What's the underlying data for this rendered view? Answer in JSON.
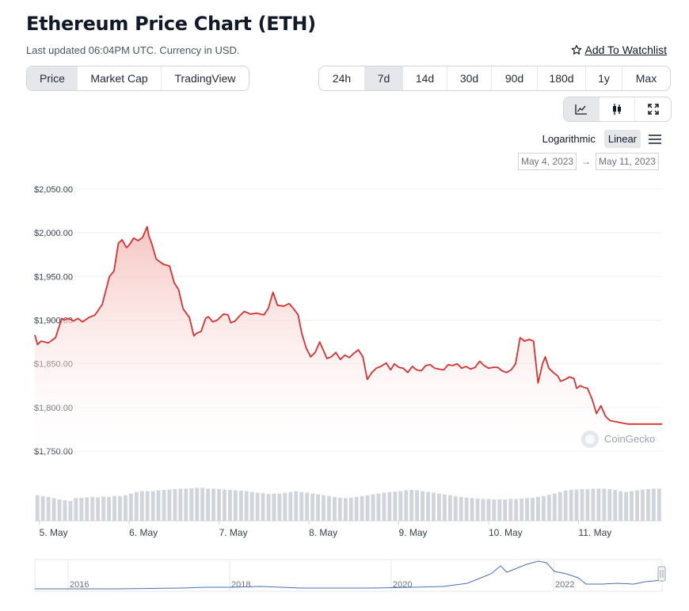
{
  "header": {
    "title": "Ethereum Price Chart (ETH)",
    "subtitle": "Last updated 06:04PM UTC. Currency in USD.",
    "watchlist_label": "Add To Watchlist"
  },
  "chart_tabs": [
    {
      "label": "Price",
      "active": true
    },
    {
      "label": "Market Cap",
      "active": false
    },
    {
      "label": "TradingView",
      "active": false
    }
  ],
  "range_tabs": [
    {
      "label": "24h",
      "active": false
    },
    {
      "label": "7d",
      "active": true
    },
    {
      "label": "14d",
      "active": false
    },
    {
      "label": "30d",
      "active": false
    },
    {
      "label": "90d",
      "active": false
    },
    {
      "label": "180d",
      "active": false
    },
    {
      "label": "1y",
      "active": false
    },
    {
      "label": "Max",
      "active": false
    }
  ],
  "view_icons": [
    "line-chart-icon",
    "candlestick-icon",
    "fullscreen-icon"
  ],
  "scale": {
    "logarithmic": "Logarithmic",
    "linear": "Linear",
    "active": "linear"
  },
  "date_range": {
    "from": "May 4, 2023",
    "arrow": "→",
    "to": "May 11, 2023"
  },
  "watermark": "CoinGecko",
  "colors": {
    "line": "#d93030",
    "fill_top": "#f7c9c6",
    "volume": "#d1d5db",
    "navigator": "#4a6fb5",
    "active_bg": "#e5e7eb"
  },
  "chart_data": {
    "type": "area",
    "title": "Ethereum Price Chart (ETH)",
    "y_ticks": [
      {
        "value": 2050,
        "label": "$2,050.00"
      },
      {
        "value": 2000,
        "label": "$2,000.00"
      },
      {
        "value": 1950,
        "label": "$1,950.00"
      },
      {
        "value": 1900,
        "label": "$1,900.00"
      },
      {
        "value": 1850,
        "label": "$1,850.00"
      },
      {
        "value": 1800,
        "label": "$1,800.00"
      },
      {
        "value": 1750,
        "label": "$1,750.00"
      }
    ],
    "ylim": [
      1750,
      2050
    ],
    "xlim": [
      4.95,
      11.93
    ],
    "x_ticks": [
      {
        "value": 5,
        "label": "5. May"
      },
      {
        "value": 6,
        "label": "6. May"
      },
      {
        "value": 7,
        "label": "7. May"
      },
      {
        "value": 8,
        "label": "8. May"
      },
      {
        "value": 9,
        "label": "9. May"
      },
      {
        "value": 10,
        "label": "10. May"
      },
      {
        "value": 11,
        "label": "11. May"
      }
    ],
    "grid": true,
    "series": [
      {
        "x": [
          4.95,
          4.98,
          5.02,
          5.1,
          5.18,
          5.25,
          5.28,
          5.32,
          5.38,
          5.43,
          5.48,
          5.55,
          5.62,
          5.7,
          5.78,
          5.83,
          5.88,
          5.92,
          5.97,
          6.0,
          6.05,
          6.1,
          6.15,
          6.2,
          6.22,
          6.25,
          6.3,
          6.38,
          6.45,
          6.5,
          6.55,
          6.6,
          6.67,
          6.72,
          6.75,
          6.8,
          6.85,
          6.88,
          6.93,
          6.98,
          7.05,
          7.1,
          7.13,
          7.18,
          7.22,
          7.28,
          7.35,
          7.42,
          7.5,
          7.55,
          7.6,
          7.65,
          7.72,
          7.78,
          7.83,
          7.88,
          7.92,
          7.97,
          8.02,
          8.07,
          8.12,
          8.15,
          8.2,
          8.25,
          8.3,
          8.35,
          8.4,
          8.45,
          8.5,
          8.55,
          8.6,
          8.65,
          8.7,
          8.75,
          8.8,
          8.86,
          8.91,
          8.95,
          9.0,
          9.05,
          9.1,
          9.15,
          9.2,
          9.25,
          9.3,
          9.35,
          9.4,
          9.5,
          9.55,
          9.6,
          9.65,
          9.7,
          9.75,
          9.8,
          9.85,
          9.9,
          9.95,
          10.0,
          10.05,
          10.1,
          10.15,
          10.2,
          10.25,
          10.3,
          10.35,
          10.4,
          10.45,
          10.5,
          10.55,
          10.6,
          10.63,
          10.67,
          10.72,
          10.77,
          10.8,
          10.85,
          10.9,
          10.95,
          10.98,
          11.02,
          11.06,
          11.1,
          11.15,
          11.2,
          11.25,
          11.3,
          11.35,
          11.4,
          11.45,
          11.5,
          11.55,
          11.6,
          11.65,
          11.7,
          11.75,
          11.78,
          11.82,
          11.86,
          11.9,
          11.93
        ],
        "y": [
          1883,
          1872,
          1876,
          1874,
          1880,
          1902,
          1900,
          1902,
          1899,
          1902,
          1898,
          1903,
          1906,
          1918,
          1950,
          1956,
          1988,
          1992,
          1983,
          1986,
          1994,
          1991,
          1995,
          2007,
          1996,
          1988,
          1970,
          1964,
          1962,
          1943,
          1935,
          1913,
          1903,
          1882,
          1885,
          1887,
          1902,
          1904,
          1898,
          1900,
          1907,
          1906,
          1897,
          1899,
          1904,
          1910,
          1907,
          1908,
          1906,
          1914,
          1932,
          1917,
          1916,
          1919,
          1913,
          1906,
          1885,
          1868,
          1858,
          1863,
          1875,
          1868,
          1856,
          1858,
          1863,
          1855,
          1860,
          1857,
          1862,
          1866,
          1858,
          1832,
          1840,
          1845,
          1847,
          1851,
          1843,
          1850,
          1846,
          1845,
          1840,
          1847,
          1843,
          1842,
          1848,
          1849,
          1845,
          1843,
          1849,
          1848,
          1850,
          1845,
          1847,
          1844,
          1846,
          1853,
          1848,
          1845,
          1846,
          1846,
          1842,
          1840,
          1843,
          1850,
          1880,
          1876,
          1878,
          1876,
          1828,
          1850,
          1858,
          1845,
          1840,
          1836,
          1830,
          1832,
          1835,
          1833,
          1822,
          1825,
          1823,
          1822,
          1810,
          1793,
          1802,
          1790,
          1785,
          1784,
          1783,
          1782,
          1781,
          1781,
          1781,
          1781,
          1781,
          1781,
          1781,
          1781,
          1781,
          1781
        ],
        "name": "Price"
      }
    ],
    "volume_relative": [
      0.62,
      0.6,
      0.58,
      0.55,
      0.52,
      0.5,
      0.48,
      0.55,
      0.56,
      0.57,
      0.58,
      0.57,
      0.59,
      0.58,
      0.6,
      0.6,
      0.62,
      0.66,
      0.7,
      0.72,
      0.72,
      0.72,
      0.74,
      0.75,
      0.76,
      0.77,
      0.78,
      0.78,
      0.79,
      0.8,
      0.8,
      0.78,
      0.78,
      0.77,
      0.76,
      0.75,
      0.74,
      0.73,
      0.72,
      0.7,
      0.68,
      0.67,
      0.65,
      0.66,
      0.66,
      0.68,
      0.7,
      0.72,
      0.7,
      0.68,
      0.66,
      0.64,
      0.62,
      0.6,
      0.58,
      0.56,
      0.55,
      0.56,
      0.58,
      0.6,
      0.62,
      0.64,
      0.66,
      0.68,
      0.7,
      0.71,
      0.72,
      0.74,
      0.75,
      0.74,
      0.72,
      0.7,
      0.68,
      0.66,
      0.64,
      0.62,
      0.6,
      0.58,
      0.56,
      0.55,
      0.54,
      0.53,
      0.53,
      0.52,
      0.52,
      0.52,
      0.53,
      0.53,
      0.54,
      0.55,
      0.56,
      0.58,
      0.6,
      0.63,
      0.66,
      0.7,
      0.73,
      0.75,
      0.76,
      0.77,
      0.77,
      0.78,
      0.78,
      0.78,
      0.77,
      0.75,
      0.72,
      0.7,
      0.72,
      0.74,
      0.76,
      0.77,
      0.78,
      0.78
    ]
  },
  "navigator": {
    "year_labels": [
      "2016",
      "2018",
      "2020",
      "2022"
    ]
  }
}
